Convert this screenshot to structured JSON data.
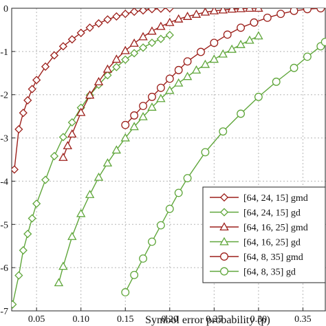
{
  "chart_data": {
    "type": "line",
    "title": "",
    "xlabel": "Symbol error probability (p)",
    "ylabel": "",
    "xlim": [
      0.022,
      0.376
    ],
    "ylim": [
      -7.0,
      0.0
    ],
    "y_clip_note": "",
    "grid": true,
    "legend_placement": "bottom-right",
    "x_ticks": [
      {
        "value": 0.05,
        "label": "0.05"
      },
      {
        "value": 0.1,
        "label": "0.10"
      },
      {
        "value": 0.15,
        "label": "0.15"
      },
      {
        "value": 0.2,
        "label": "0.20"
      },
      {
        "value": 0.25,
        "label": "0.25"
      },
      {
        "value": 0.3,
        "label": "0.30"
      },
      {
        "value": 0.35,
        "label": "0.35"
      }
    ],
    "y_ticks": [
      {
        "value": 0,
        "label": "0"
      },
      {
        "value": -1,
        "label": "-1"
      },
      {
        "value": -2,
        "label": "-2"
      },
      {
        "value": -3,
        "label": "-3"
      },
      {
        "value": -4,
        "label": "-4"
      },
      {
        "value": -5,
        "label": "-5"
      },
      {
        "value": -6,
        "label": "-6"
      },
      {
        "value": -7,
        "label": "-7"
      }
    ],
    "series": [
      {
        "name": "[64, 24, 15] gmd",
        "color": "#9c1f1a",
        "marker": "diamond",
        "points": [
          [
            0.025,
            -3.73
          ],
          [
            0.03,
            -2.8
          ],
          [
            0.035,
            -2.42
          ],
          [
            0.04,
            -2.13
          ],
          [
            0.045,
            -1.87
          ],
          [
            0.05,
            -1.66
          ],
          [
            0.06,
            -1.35
          ],
          [
            0.07,
            -1.09
          ],
          [
            0.08,
            -0.88
          ],
          [
            0.09,
            -0.72
          ],
          [
            0.1,
            -0.57
          ],
          [
            0.11,
            -0.45
          ],
          [
            0.12,
            -0.35
          ],
          [
            0.13,
            -0.26
          ],
          [
            0.14,
            -0.19
          ],
          [
            0.15,
            -0.13
          ],
          [
            0.16,
            -0.08
          ],
          [
            0.17,
            -0.05
          ],
          [
            0.18,
            -0.02
          ],
          [
            0.19,
            -0.01
          ],
          [
            0.2,
            0.0
          ]
        ]
      },
      {
        "name": "[64, 24, 15] gd",
        "color": "#5fa63a",
        "marker": "diamond",
        "points": [
          [
            0.023,
            -6.85
          ],
          [
            0.03,
            -6.18
          ],
          [
            0.035,
            -5.6
          ],
          [
            0.04,
            -5.22
          ],
          [
            0.045,
            -4.86
          ],
          [
            0.05,
            -4.52
          ],
          [
            0.06,
            -3.97
          ],
          [
            0.07,
            -3.42
          ],
          [
            0.08,
            -2.98
          ],
          [
            0.09,
            -2.64
          ],
          [
            0.1,
            -2.3
          ],
          [
            0.11,
            -2.01
          ],
          [
            0.12,
            -1.77
          ],
          [
            0.13,
            -1.55
          ],
          [
            0.14,
            -1.36
          ],
          [
            0.15,
            -1.19
          ],
          [
            0.16,
            -1.04
          ],
          [
            0.17,
            -0.91
          ],
          [
            0.18,
            -0.8
          ],
          [
            0.19,
            -0.71
          ],
          [
            0.2,
            -0.62
          ]
        ]
      },
      {
        "name": "[64, 16, 25] gmd",
        "color": "#9c1f1a",
        "marker": "triangle",
        "points": [
          [
            0.08,
            -3.45
          ],
          [
            0.085,
            -3.18
          ],
          [
            0.09,
            -2.91
          ],
          [
            0.1,
            -2.41
          ],
          [
            0.11,
            -2.01
          ],
          [
            0.12,
            -1.7
          ],
          [
            0.13,
            -1.41
          ],
          [
            0.14,
            -1.18
          ],
          [
            0.15,
            -0.98
          ],
          [
            0.16,
            -0.81
          ],
          [
            0.17,
            -0.66
          ],
          [
            0.18,
            -0.53
          ],
          [
            0.19,
            -0.42
          ],
          [
            0.2,
            -0.33
          ],
          [
            0.21,
            -0.25
          ],
          [
            0.22,
            -0.19
          ],
          [
            0.23,
            -0.14
          ],
          [
            0.24,
            -0.09
          ],
          [
            0.25,
            -0.06
          ],
          [
            0.26,
            -0.04
          ],
          [
            0.27,
            -0.02
          ],
          [
            0.28,
            -0.01
          ],
          [
            0.29,
            0.0
          ],
          [
            0.3,
            0.0
          ]
        ]
      },
      {
        "name": "[64, 16, 25] gd",
        "color": "#5fa63a",
        "marker": "triangle",
        "points": [
          [
            0.075,
            -6.35
          ],
          [
            0.08,
            -5.97
          ],
          [
            0.09,
            -5.28
          ],
          [
            0.1,
            -4.75
          ],
          [
            0.11,
            -4.31
          ],
          [
            0.12,
            -3.91
          ],
          [
            0.13,
            -3.58
          ],
          [
            0.14,
            -3.28
          ],
          [
            0.15,
            -3.0
          ],
          [
            0.16,
            -2.74
          ],
          [
            0.17,
            -2.51
          ],
          [
            0.18,
            -2.29
          ],
          [
            0.19,
            -2.09
          ],
          [
            0.2,
            -1.9
          ],
          [
            0.21,
            -1.73
          ],
          [
            0.22,
            -1.58
          ],
          [
            0.23,
            -1.43
          ],
          [
            0.24,
            -1.3
          ],
          [
            0.25,
            -1.18
          ],
          [
            0.26,
            -1.06
          ],
          [
            0.27,
            -0.95
          ],
          [
            0.28,
            -0.84
          ],
          [
            0.29,
            -0.74
          ],
          [
            0.3,
            -0.64
          ]
        ]
      },
      {
        "name": "[64, 8, 35] gmd",
        "color": "#9c1f1a",
        "marker": "circle",
        "points": [
          [
            0.15,
            -2.7
          ],
          [
            0.16,
            -2.48
          ],
          [
            0.17,
            -2.26
          ],
          [
            0.18,
            -2.05
          ],
          [
            0.19,
            -1.84
          ],
          [
            0.2,
            -1.63
          ],
          [
            0.21,
            -1.43
          ],
          [
            0.22,
            -1.23
          ],
          [
            0.235,
            -1.01
          ],
          [
            0.25,
            -0.8
          ],
          [
            0.265,
            -0.61
          ],
          [
            0.28,
            -0.45
          ],
          [
            0.295,
            -0.33
          ],
          [
            0.31,
            -0.22
          ],
          [
            0.325,
            -0.13
          ],
          [
            0.34,
            -0.06
          ],
          [
            0.355,
            -0.02
          ],
          [
            0.37,
            0.0
          ]
        ]
      },
      {
        "name": "[64, 8, 35] gd",
        "color": "#5fa63a",
        "marker": "circle",
        "points": [
          [
            0.15,
            -6.57
          ],
          [
            0.16,
            -6.17
          ],
          [
            0.17,
            -5.79
          ],
          [
            0.18,
            -5.4
          ],
          [
            0.19,
            -5.02
          ],
          [
            0.2,
            -4.64
          ],
          [
            0.21,
            -4.27
          ],
          [
            0.22,
            -3.93
          ],
          [
            0.24,
            -3.33
          ],
          [
            0.26,
            -2.85
          ],
          [
            0.28,
            -2.44
          ],
          [
            0.3,
            -2.05
          ],
          [
            0.32,
            -1.7
          ],
          [
            0.34,
            -1.38
          ],
          [
            0.355,
            -1.12
          ],
          [
            0.37,
            -0.88
          ],
          [
            0.375,
            -0.78
          ]
        ]
      }
    ]
  }
}
